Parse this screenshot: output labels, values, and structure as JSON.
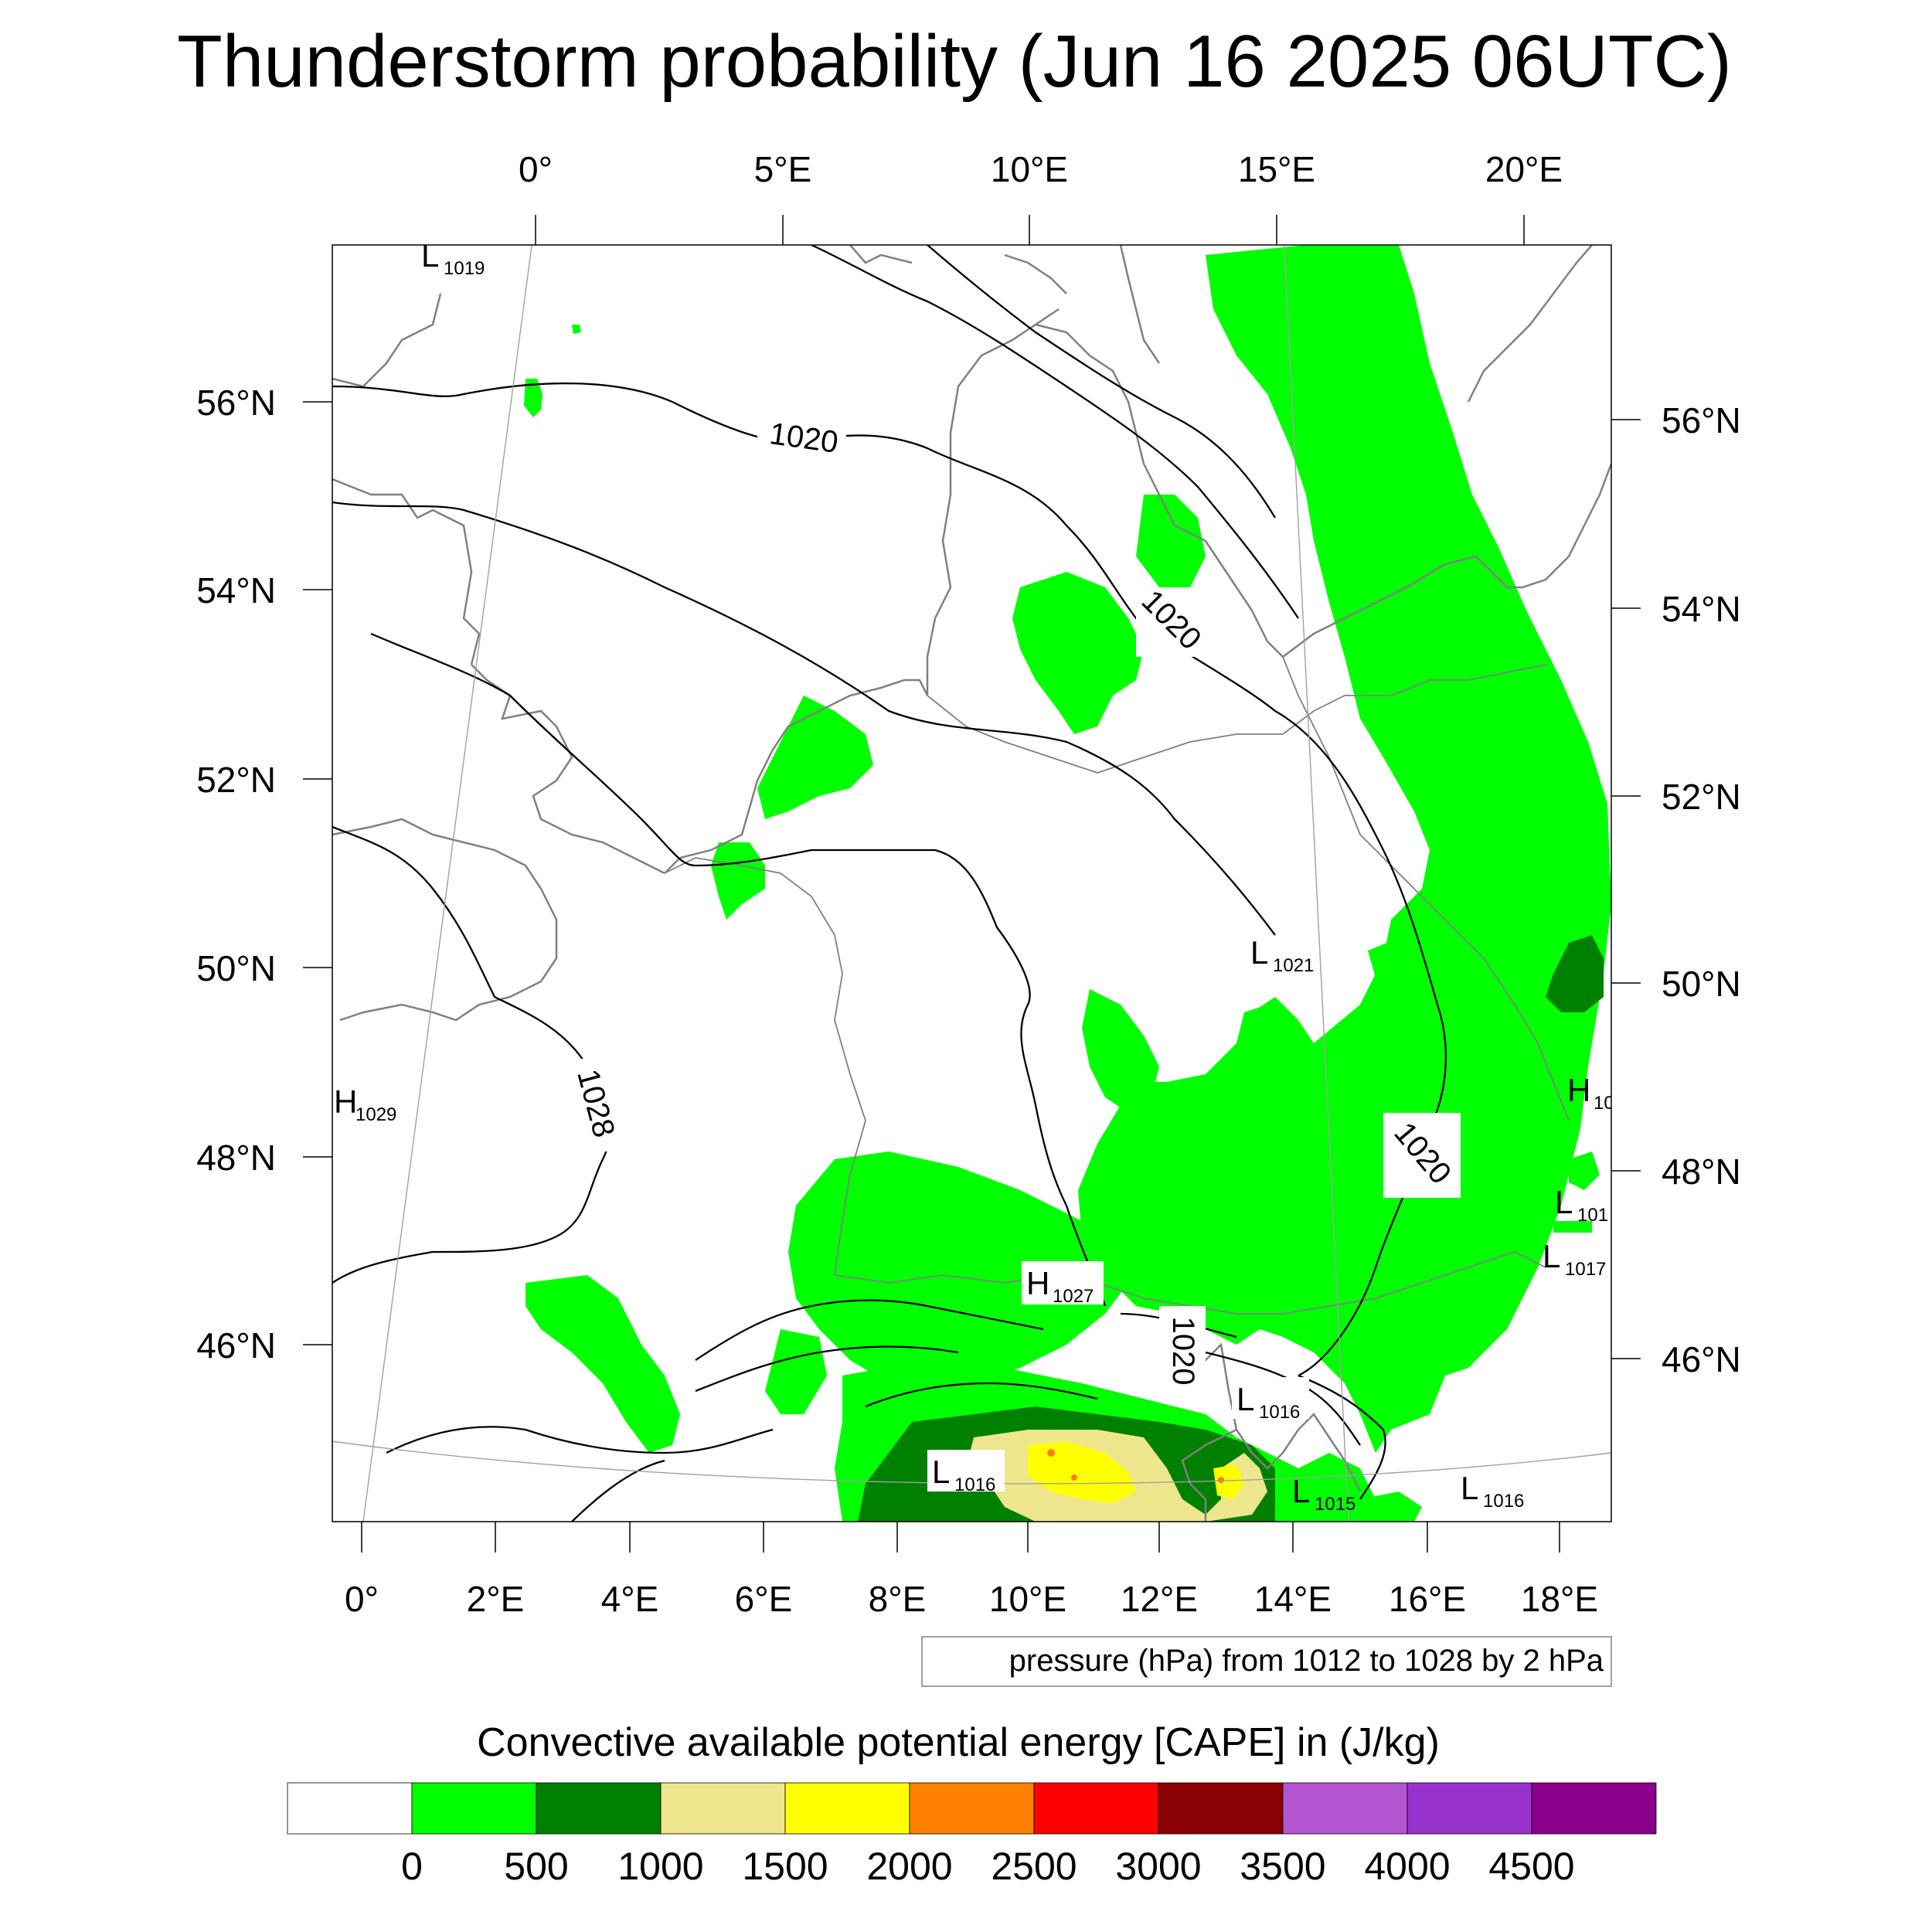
{
  "title": "Thunderstorm probability (Jun 16 2025 06UTC)",
  "top_lon_labels": [
    "0°",
    "5°E",
    "10°E",
    "15°E",
    "20°E"
  ],
  "bottom_lon_labels": [
    "0°",
    "2°E",
    "4°E",
    "6°E",
    "8°E",
    "10°E",
    "12°E",
    "14°E",
    "16°E",
    "18°E"
  ],
  "left_lat_labels": [
    "56°N",
    "54°N",
    "52°N",
    "50°N",
    "48°N",
    "46°N"
  ],
  "right_lat_labels": [
    "56°N",
    "54°N",
    "52°N",
    "50°N",
    "48°N",
    "46°N"
  ],
  "isobar_labels": [
    "1020",
    "1020",
    "1028",
    "1020",
    "1020"
  ],
  "pressure_centers": [
    {
      "kind": "L",
      "value": "1019"
    },
    {
      "kind": "H",
      "value": "1029"
    },
    {
      "kind": "L",
      "value": "1021"
    },
    {
      "kind": "H",
      "value": "1027"
    },
    {
      "kind": "L",
      "value": "1016"
    },
    {
      "kind": "L",
      "value": "1016"
    },
    {
      "kind": "L",
      "value": "1015"
    },
    {
      "kind": "L",
      "value": "1016"
    },
    {
      "kind": "H",
      "value": "10"
    },
    {
      "kind": "L",
      "value": "101"
    },
    {
      "kind": "L",
      "value": "1017"
    }
  ],
  "contour_info": "pressure (hPa) from 1012 to 1028 by 2 hPa",
  "colorbar": {
    "title": "Convective available potential energy [CAPE] in (J/kg)",
    "colors": [
      "#ffffff",
      "#00ff00",
      "#008000",
      "#eee68c",
      "#ffff00",
      "#ff8000",
      "#ff0000",
      "#8b0000",
      "#b455d2",
      "#9932cc",
      "#8b008b"
    ],
    "tick_labels": [
      "0",
      "500",
      "1000",
      "1500",
      "2000",
      "2500",
      "3000",
      "3500",
      "4000",
      "4500"
    ]
  }
}
